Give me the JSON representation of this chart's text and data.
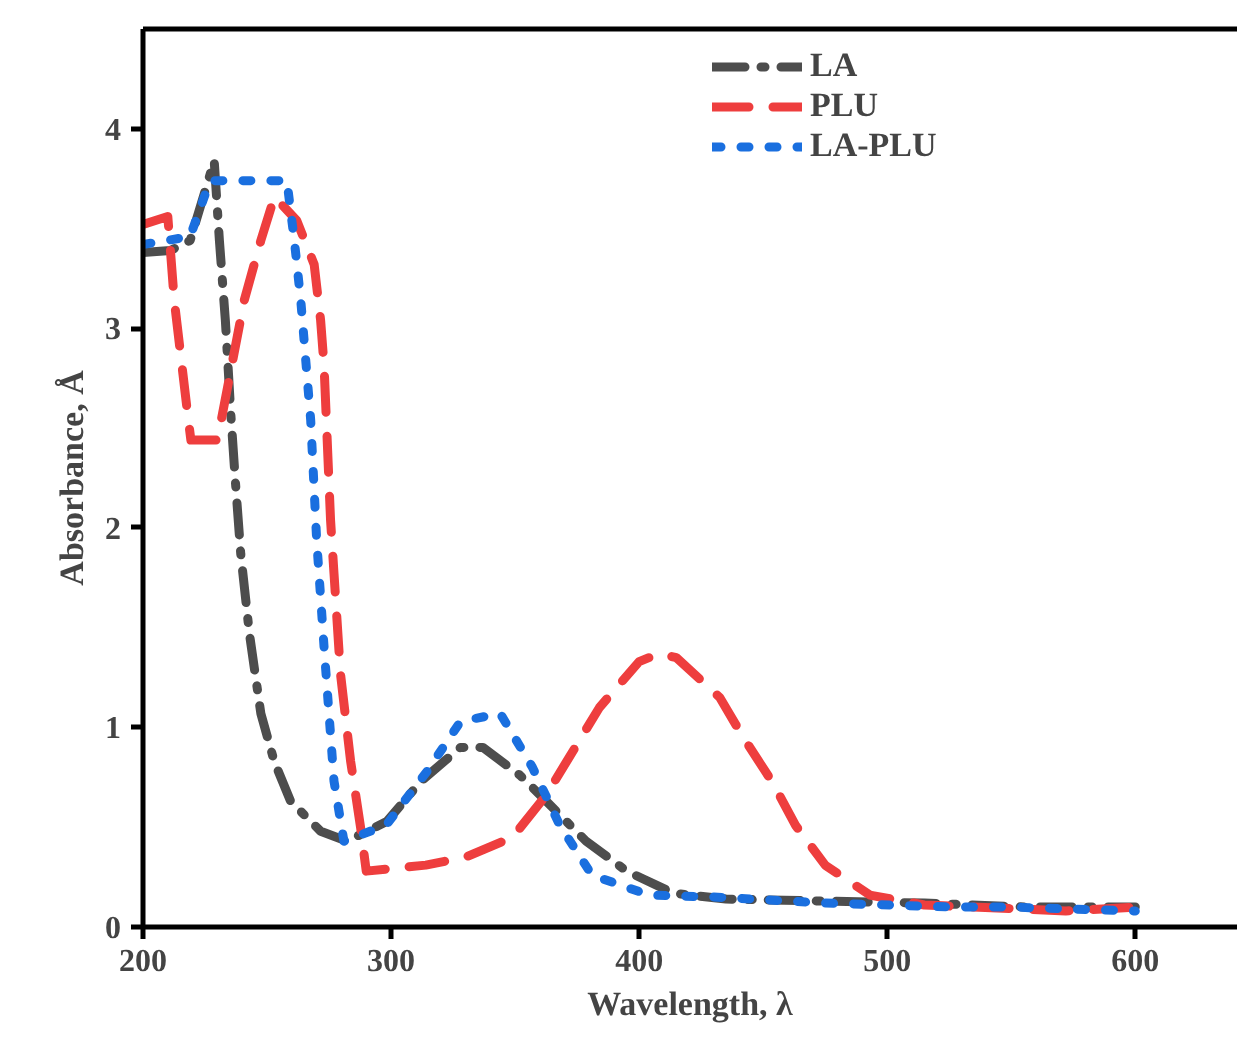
{
  "chart_data": {
    "type": "line",
    "xlabel": "Wavelength, λ",
    "ylabel": "Absorbance, Å",
    "xlim": [
      200,
      641
    ],
    "ylim": [
      0,
      4.5
    ],
    "xticks": [
      200,
      300,
      400,
      500,
      600
    ],
    "yticks": [
      0,
      1,
      2,
      3,
      4
    ],
    "grid": false,
    "legend": "top right",
    "marker": "none",
    "series": [
      {
        "name": "LA",
        "color": "#4d4d4d",
        "line_style": "dashdot",
        "x": [
          200,
          211,
          219,
          228.7,
          230.8,
          233.2,
          235.4,
          237.2,
          239.4,
          242.9,
          247.5,
          252.9,
          259.5,
          271.6,
          282.3,
          298.4,
          312,
          328,
          337,
          352,
          362.6,
          378.6,
          395,
          413.7,
          435,
          475,
          515,
          556,
          600
        ],
        "values": [
          3.38,
          3.39,
          3.44,
          3.84,
          3.44,
          3.04,
          2.57,
          2.24,
          1.87,
          1.47,
          1.07,
          0.83,
          0.63,
          0.48,
          0.43,
          0.53,
          0.73,
          0.9,
          0.9,
          0.76,
          0.63,
          0.43,
          0.28,
          0.17,
          0.14,
          0.13,
          0.12,
          0.1,
          0.1
        ]
      },
      {
        "name": "PLU",
        "color": "#ee3e3e",
        "line_style": "dashed",
        "x": [
          200,
          210,
          212.6,
          218,
          219.3,
          230,
          240.8,
          247.5,
          253,
          262,
          269,
          271.6,
          273,
          275.6,
          277,
          279.6,
          283.7,
          287.7,
          290,
          314,
          330,
          349,
          362.5,
          384,
          400,
          408,
          415,
          432.5,
          442,
          454,
          463,
          475,
          493,
          515,
          534,
          556,
          572,
          600
        ],
        "values": [
          3.52,
          3.56,
          3.14,
          2.57,
          2.44,
          2.44,
          3.14,
          3.44,
          3.66,
          3.54,
          3.32,
          3.04,
          2.81,
          2.04,
          1.77,
          1.27,
          0.83,
          0.5,
          0.28,
          0.31,
          0.35,
          0.45,
          0.66,
          1.1,
          1.33,
          1.37,
          1.35,
          1.15,
          0.95,
          0.72,
          0.51,
          0.31,
          0.16,
          0.11,
          0.1,
          0.09,
          0.08,
          0.1
        ]
      },
      {
        "name": "LA-PLU",
        "color": "#1a6fdf",
        "line_style": "dotted",
        "x": [
          200,
          219,
          227,
          236.7,
          258,
          261,
          263.6,
          267.6,
          270,
          273,
          277,
          281,
          298,
          314.5,
          328,
          344,
          357,
          368,
          381,
          404,
          430,
          475,
          502,
          526,
          550,
          575,
          600
        ],
        "values": [
          3.42,
          3.46,
          3.74,
          3.74,
          3.74,
          3.44,
          3.14,
          2.54,
          1.94,
          1.4,
          0.73,
          0.43,
          0.51,
          0.78,
          1.03,
          1.07,
          0.8,
          0.51,
          0.26,
          0.16,
          0.15,
          0.12,
          0.11,
          0.1,
          0.1,
          0.09,
          0.08
        ]
      }
    ]
  }
}
